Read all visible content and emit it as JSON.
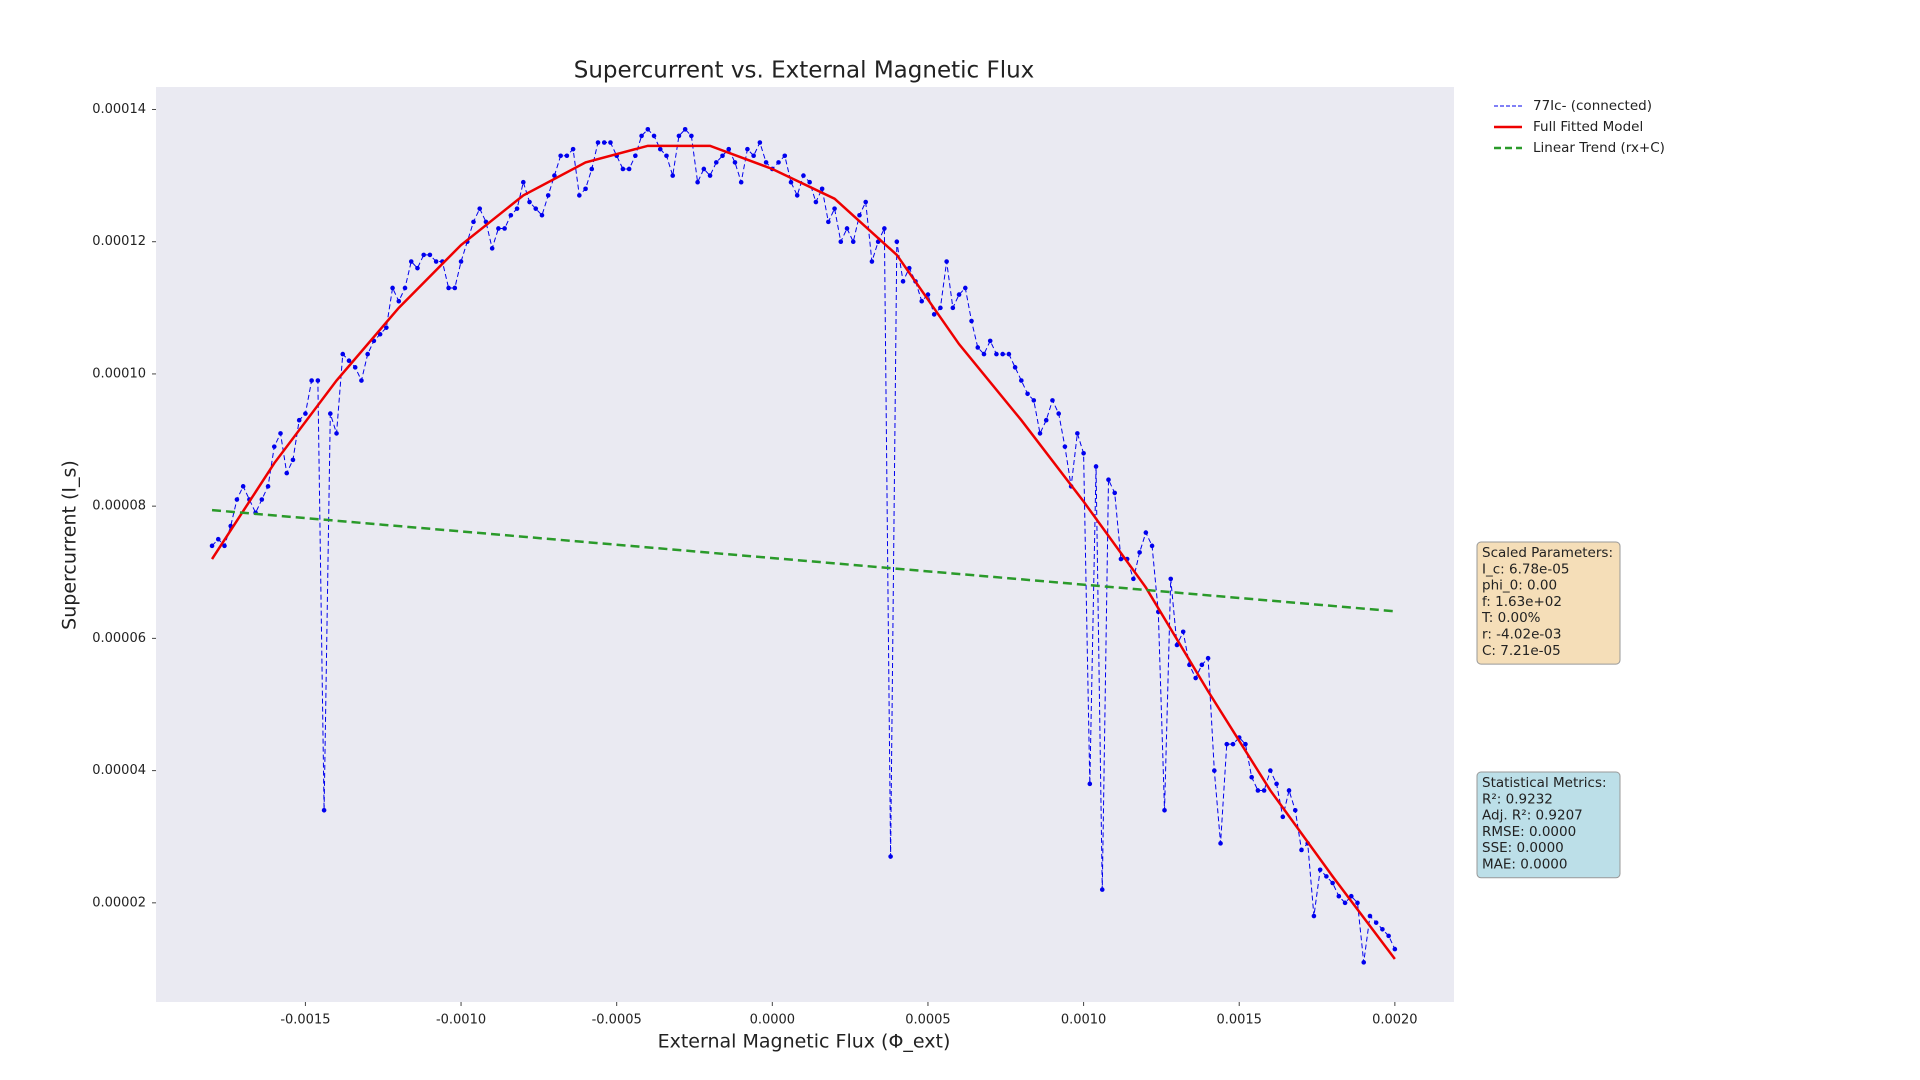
{
  "chart_data": {
    "type": "line",
    "title": "Supercurrent vs. External Magnetic Flux",
    "xlabel": "External Magnetic Flux (Φ_ext)",
    "ylabel": "Supercurrent (I_s)",
    "xlim": [
      -0.00198,
      0.00219
    ],
    "ylim": [
      5e-06,
      0.0001434
    ],
    "xticks": [
      {
        "value": -0.0015,
        "label": "-0.0015"
      },
      {
        "value": -0.001,
        "label": "-0.0010"
      },
      {
        "value": -0.0005,
        "label": "-0.0005"
      },
      {
        "value": 0,
        "label": "0.0000"
      },
      {
        "value": 0.0005,
        "label": "0.0005"
      },
      {
        "value": 0.001,
        "label": "0.0010"
      },
      {
        "value": 0.0015,
        "label": "0.0015"
      },
      {
        "value": 0.002,
        "label": "0.0020"
      }
    ],
    "yticks": [
      {
        "value": 2e-05,
        "label": "0.00002"
      },
      {
        "value": 4e-05,
        "label": "0.00004"
      },
      {
        "value": 6e-05,
        "label": "0.00006"
      },
      {
        "value": 8e-05,
        "label": "0.00008"
      },
      {
        "value": 0.0001,
        "label": "0.00010"
      },
      {
        "value": 0.00012,
        "label": "0.00012"
      },
      {
        "value": 0.00014,
        "label": "0.00014"
      }
    ],
    "grid": false,
    "background": "#eaeaf2",
    "series": [
      {
        "name": "77Ic- (connected)",
        "color": "#0000ee",
        "linestyle": "dashed",
        "linewidth": 1,
        "marker": true,
        "x": [
          -0.0018,
          -0.00178,
          -0.00176,
          -0.00174,
          -0.00172,
          -0.0017,
          -0.00168,
          -0.00166,
          -0.00164,
          -0.00162,
          -0.0016,
          -0.00158,
          -0.00156,
          -0.00154,
          -0.00152,
          -0.0015,
          -0.00148,
          -0.00146,
          -0.00144,
          -0.00142,
          -0.0014,
          -0.00138,
          -0.00136,
          -0.00134,
          -0.00132,
          -0.0013,
          -0.00128,
          -0.00126,
          -0.00124,
          -0.00122,
          -0.0012,
          -0.00118,
          -0.00116,
          -0.00114,
          -0.00112,
          -0.0011,
          -0.00108,
          -0.00106,
          -0.00104,
          -0.00102,
          -0.001,
          -0.00098,
          -0.00096,
          -0.00094,
          -0.00092,
          -0.0009,
          -0.00088,
          -0.00086,
          -0.00084,
          -0.00082,
          -0.0008,
          -0.00078,
          -0.00076,
          -0.00074,
          -0.00072,
          -0.0007,
          -0.00068,
          -0.00066,
          -0.00064,
          -0.00062,
          -0.0006,
          -0.00058,
          -0.00056,
          -0.00054,
          -0.00052,
          -0.0005,
          -0.00048,
          -0.00046,
          -0.00044,
          -0.00042,
          -0.0004,
          -0.00038,
          -0.00036,
          -0.00034,
          -0.00032,
          -0.0003,
          -0.00028,
          -0.00026,
          -0.00024,
          -0.00022,
          -0.0002,
          -0.00018,
          -0.00016,
          -0.00014,
          -0.00012,
          -0.0001,
          -8e-05,
          -6e-05,
          -4e-05,
          -2e-05,
          0,
          2e-05,
          4e-05,
          6e-05,
          8e-05,
          0.0001,
          0.00012,
          0.00014,
          0.00016,
          0.00018,
          0.0002,
          0.00022,
          0.00024,
          0.00026,
          0.00028,
          0.0003,
          0.00032,
          0.00034,
          0.00036,
          0.00038,
          0.0004,
          0.00042,
          0.00044,
          0.00046,
          0.00048,
          0.0005,
          0.00052,
          0.00054,
          0.00056,
          0.00058,
          0.0006,
          0.00062,
          0.00064,
          0.00066,
          0.00068,
          0.0007,
          0.00072,
          0.00074,
          0.00076,
          0.00078,
          0.0008,
          0.00082,
          0.00084,
          0.00086,
          0.00088,
          0.0009,
          0.00092,
          0.00094,
          0.00096,
          0.00098,
          0.001,
          0.00102,
          0.00104,
          0.00106,
          0.00108,
          0.0011,
          0.00112,
          0.00114,
          0.00116,
          0.00118,
          0.0012,
          0.00122,
          0.00124,
          0.00126,
          0.00128,
          0.0013,
          0.00132,
          0.00134,
          0.00136,
          0.00138,
          0.0014,
          0.00142,
          0.00144,
          0.00146,
          0.00148,
          0.0015,
          0.00152,
          0.00154,
          0.00156,
          0.00158,
          0.0016,
          0.00162,
          0.00164,
          0.00166,
          0.00168,
          0.0017,
          0.00172,
          0.00174,
          0.00176,
          0.00178,
          0.0018,
          0.00182,
          0.00184,
          0.00186,
          0.00188,
          0.0019,
          0.00192,
          0.00194,
          0.00196,
          0.00198,
          0.002
        ],
        "values": [
          7.4e-05,
          7.5e-05,
          7.4e-05,
          7.7e-05,
          8.1e-05,
          8.3e-05,
          8.1e-05,
          7.9e-05,
          8.1e-05,
          8.3e-05,
          8.9e-05,
          9.1e-05,
          8.5e-05,
          8.7e-05,
          9.3e-05,
          9.4e-05,
          9.9e-05,
          9.9e-05,
          3.4e-05,
          9.4e-05,
          9.1e-05,
          0.000103,
          0.000102,
          0.000101,
          9.9e-05,
          0.000103,
          0.000105,
          0.000106,
          0.000107,
          0.000113,
          0.000111,
          0.000113,
          0.000117,
          0.000116,
          0.000118,
          0.000118,
          0.000117,
          0.000117,
          0.000113,
          0.000113,
          0.000117,
          0.00012,
          0.000123,
          0.000125,
          0.000123,
          0.000119,
          0.000122,
          0.000122,
          0.000124,
          0.000125,
          0.000129,
          0.000126,
          0.000125,
          0.000124,
          0.000127,
          0.00013,
          0.000133,
          0.000133,
          0.000134,
          0.000127,
          0.000128,
          0.000131,
          0.000135,
          0.000135,
          0.000135,
          0.000133,
          0.000131,
          0.000131,
          0.000133,
          0.000136,
          0.000137,
          0.000136,
          0.000134,
          0.000133,
          0.00013,
          0.000136,
          0.000137,
          0.000136,
          0.000129,
          0.000131,
          0.00013,
          0.000132,
          0.000133,
          0.000134,
          0.000132,
          0.000129,
          0.000134,
          0.000133,
          0.000135,
          0.000132,
          0.000131,
          0.000132,
          0.000133,
          0.000129,
          0.000127,
          0.00013,
          0.000129,
          0.000126,
          0.000128,
          0.000123,
          0.000125,
          0.00012,
          0.000122,
          0.00012,
          0.000124,
          0.000126,
          0.000117,
          0.00012,
          0.000122,
          2.7e-05,
          0.00012,
          0.000114,
          0.000116,
          0.000114,
          0.000111,
          0.000112,
          0.000109,
          0.00011,
          0.000117,
          0.00011,
          0.000112,
          0.000113,
          0.000108,
          0.000104,
          0.000103,
          0.000105,
          0.000103,
          0.000103,
          0.000103,
          0.000101,
          9.9e-05,
          9.7e-05,
          9.6e-05,
          9.1e-05,
          9.3e-05,
          9.6e-05,
          9.4e-05,
          8.9e-05,
          8.3e-05,
          9.1e-05,
          8.8e-05,
          3.8e-05,
          8.6e-05,
          2.2e-05,
          8.4e-05,
          8.2e-05,
          7.2e-05,
          7.2e-05,
          6.9e-05,
          7.3e-05,
          7.6e-05,
          7.4e-05,
          6.4e-05,
          3.4e-05,
          6.9e-05,
          5.9e-05,
          6.1e-05,
          5.6e-05,
          5.4e-05,
          5.6e-05,
          5.7e-05,
          4e-05,
          2.9e-05,
          4.4e-05,
          4.4e-05,
          4.5e-05,
          4.4e-05,
          3.9e-05,
          3.7e-05,
          3.7e-05,
          4e-05,
          3.8e-05,
          3.3e-05,
          3.7e-05,
          3.4e-05,
          2.8e-05,
          2.9e-05,
          1.8e-05,
          2.5e-05,
          2.4e-05,
          2.3e-05,
          2.1e-05,
          2e-05,
          2.1e-05,
          2e-05,
          1.1e-05,
          1.8e-05,
          1.7e-05,
          1.6e-05,
          1.5e-05,
          1.3e-05
        ]
      },
      {
        "name": "Full Fitted Model",
        "color": "#ee0000",
        "linestyle": "solid",
        "linewidth": 2.5,
        "marker": false,
        "x": [
          -0.0018,
          -0.0016,
          -0.0014,
          -0.0012,
          -0.001,
          -0.0008,
          -0.0006,
          -0.0004,
          -0.0002,
          0,
          0.0002,
          0.0004,
          0.0006,
          0.0008,
          0.001,
          0.0012,
          0.0014,
          0.0016,
          0.0018,
          0.002
        ],
        "values": [
          7.2e-05,
          8.65e-05,
          9.9e-05,
          0.00011,
          0.0001195,
          0.000127,
          0.000132,
          0.0001345,
          0.0001345,
          0.000131,
          0.0001265,
          0.000118,
          0.0001045,
          9.3e-05,
          8.07e-05,
          6.77e-05,
          5.2e-05,
          3.7e-05,
          2.4e-05,
          1.15e-05
        ]
      },
      {
        "name": "Linear Trend (rx+C)",
        "color": "#2a9a2a",
        "linestyle": "dashed",
        "linewidth": 2.5,
        "marker": false,
        "x": [
          -0.0018,
          0.002
        ],
        "values": [
          7.94e-05,
          6.41e-05
        ]
      }
    ],
    "annotations": [
      {
        "lines": [
          "Scaled Parameters:",
          "I_c: 6.78e-05",
          "phi_0: 0.00",
          "f: 1.63e+02",
          "T: 0.00%",
          "r: -4.02e-03",
          "C: 7.21e-05"
        ],
        "color": "#f5deb8"
      },
      {
        "lines": [
          "Statistical Metrics:",
          "R²: 0.9232",
          "Adj. R²: 0.9207",
          "RMSE: 0.0000",
          "SSE: 0.0000",
          "MAE: 0.0000"
        ],
        "color": "#bcdfe8"
      }
    ]
  }
}
